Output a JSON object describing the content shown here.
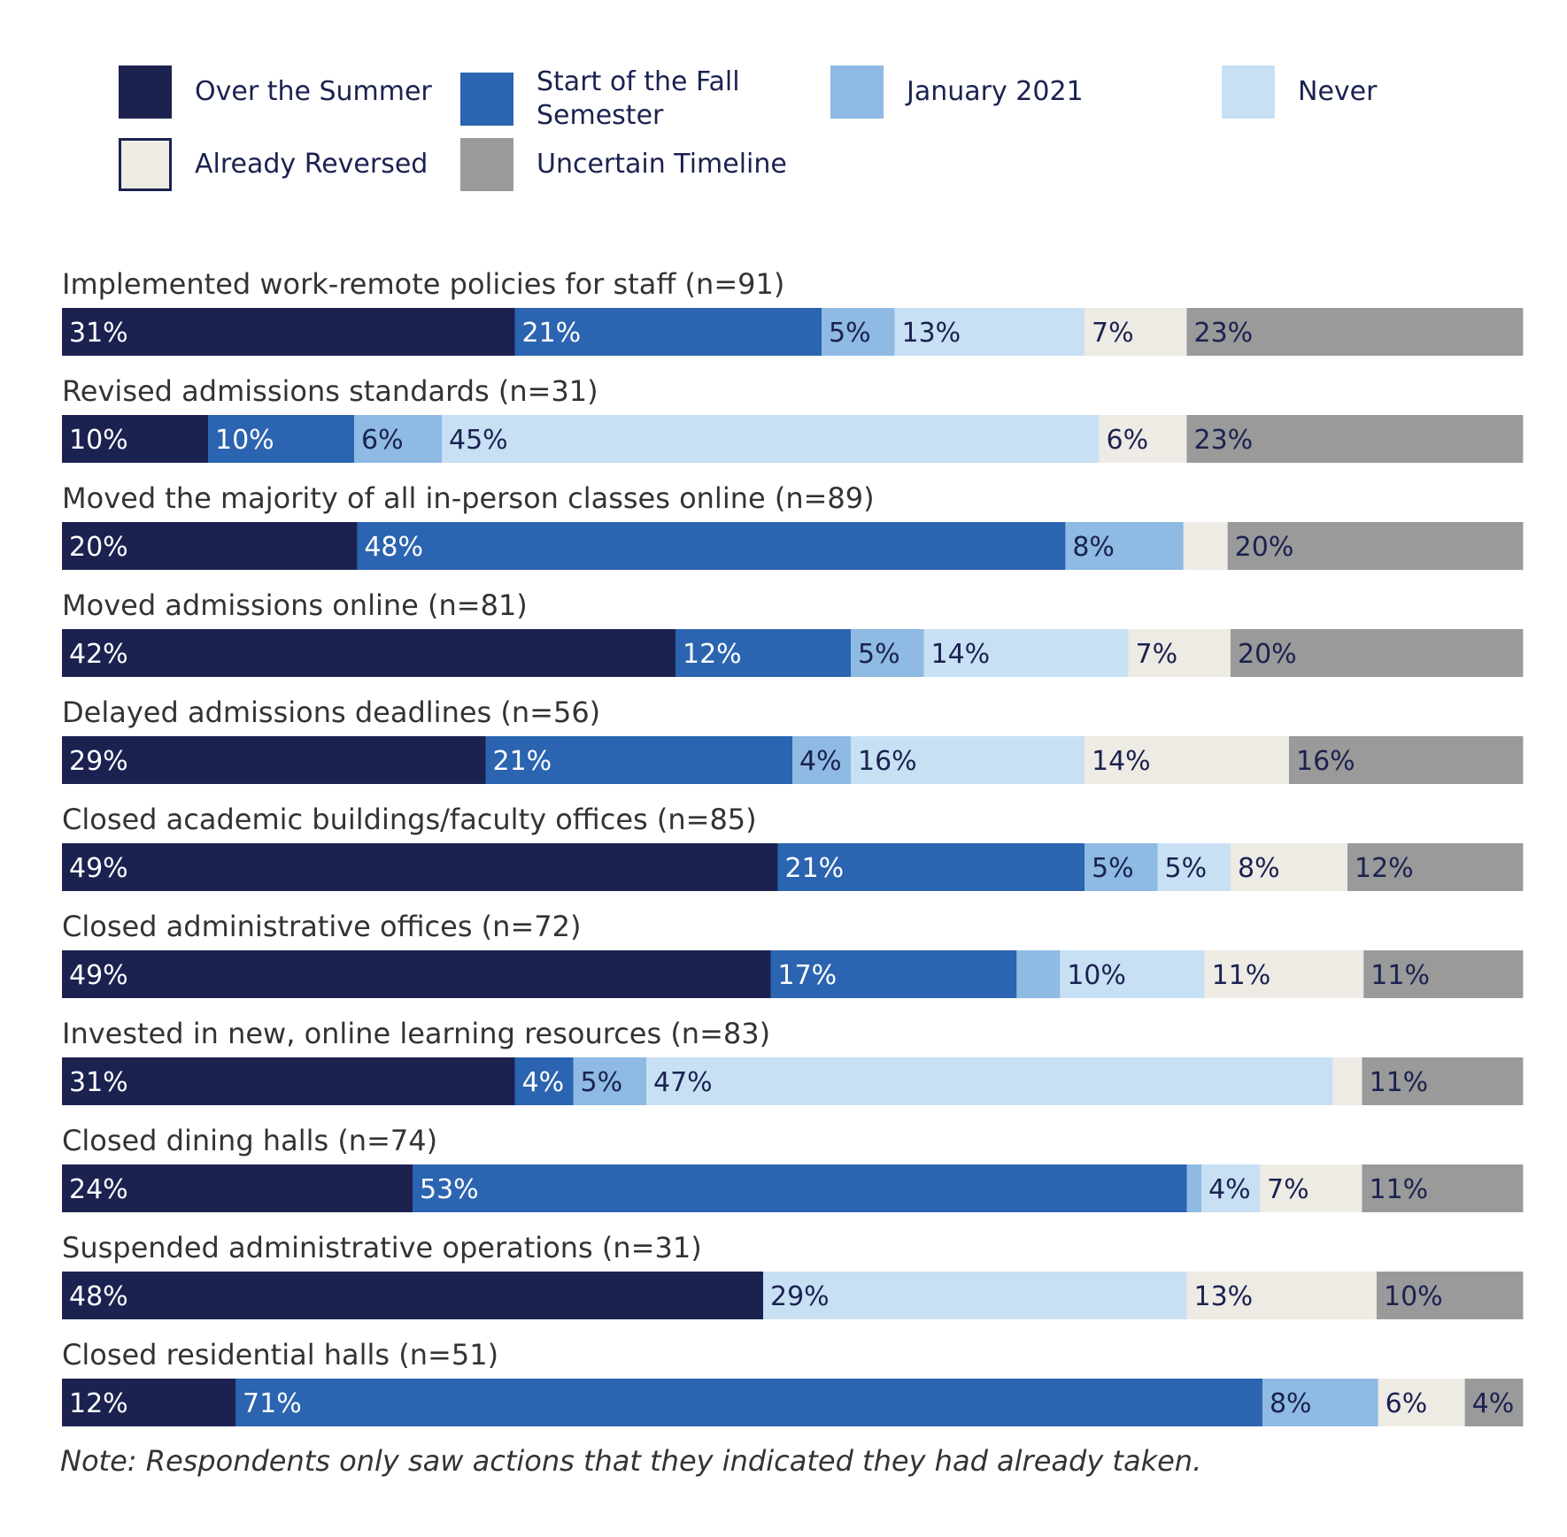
{
  "chart_data": {
    "type": "bar",
    "orientation": "horizontal",
    "stacked": true,
    "title": "",
    "xlabel": "",
    "ylabel": "",
    "xlim": [
      0,
      100
    ],
    "grid": false,
    "legend_position": "top",
    "value_suffix": "%",
    "categories": [
      "Implemented work-remote policies for staff (n=91)",
      "Revised admissions standards (n=31)",
      "Moved the majority of all in-person classes online (n=89)",
      "Moved admissions online (n=81)",
      "Delayed admissions deadlines (n=56)",
      "Closed academic buildings/faculty offices (n=85)",
      "Closed administrative offices (n=72)",
      "Invested in new, online learning resources (n=83)",
      "Closed dining halls (n=74)",
      "Suspended administrative operations (n=31)",
      "Closed residential halls (n=51)"
    ],
    "series": [
      {
        "name": "Over the Summer",
        "color": "#1b2250",
        "values": [
          31,
          10,
          20,
          42,
          29,
          49,
          49,
          31,
          24,
          48,
          12
        ]
      },
      {
        "name": "Start of the Fall Semester",
        "color": "#2b64b0",
        "values": [
          21,
          10,
          48,
          12,
          21,
          21,
          17,
          4,
          53,
          0,
          71
        ]
      },
      {
        "name": "January 2021",
        "color": "#8ebae3",
        "values": [
          5,
          6,
          8,
          5,
          4,
          5,
          3,
          5,
          1,
          0,
          8
        ]
      },
      {
        "name": "Never",
        "color": "#c8e0f4",
        "values": [
          13,
          45,
          0,
          14,
          16,
          5,
          10,
          47,
          4,
          29,
          0
        ]
      },
      {
        "name": "Already Reversed",
        "color": "#eeebe5",
        "values": [
          7,
          6,
          3,
          7,
          14,
          8,
          11,
          2,
          7,
          13,
          6
        ]
      },
      {
        "name": "Uncertain Timeline",
        "color": "#999a99",
        "values": [
          23,
          23,
          20,
          20,
          16,
          12,
          11,
          11,
          11,
          10,
          4
        ]
      }
    ],
    "data_labels": [
      [
        "31%",
        "21%",
        "5%",
        "13%",
        "7%",
        "23%"
      ],
      [
        "10%",
        "10%",
        "6%",
        "45%",
        "6%",
        "23%"
      ],
      [
        "20%",
        "48%",
        "8%",
        "",
        "",
        "20%"
      ],
      [
        "42%",
        "12%",
        "5%",
        "14%",
        "7%",
        "20%"
      ],
      [
        "29%",
        "21%",
        "4%",
        "16%",
        "14%",
        "16%"
      ],
      [
        "49%",
        "21%",
        "5%",
        "5%",
        "8%",
        "12%"
      ],
      [
        "49%",
        "17%",
        "",
        "10%",
        "11%",
        "11%"
      ],
      [
        "31%",
        "4%",
        "5%",
        "47%",
        "",
        "11%"
      ],
      [
        "24%",
        "53%",
        "",
        "4%",
        "7%",
        "11%"
      ],
      [
        "48%",
        "",
        "",
        "29%",
        "13%",
        "10%"
      ],
      [
        "12%",
        "71%",
        "8%",
        "",
        "6%",
        "4%"
      ]
    ],
    "label_text_colors": [
      "#ffffff",
      "#ffffff",
      "#1b2250",
      "#1b2250",
      "#1b2250",
      "#1b2250"
    ],
    "legend_outline_color": "#1b2250"
  },
  "note": "Note: Respondents only saw actions that they indicated they had already taken."
}
